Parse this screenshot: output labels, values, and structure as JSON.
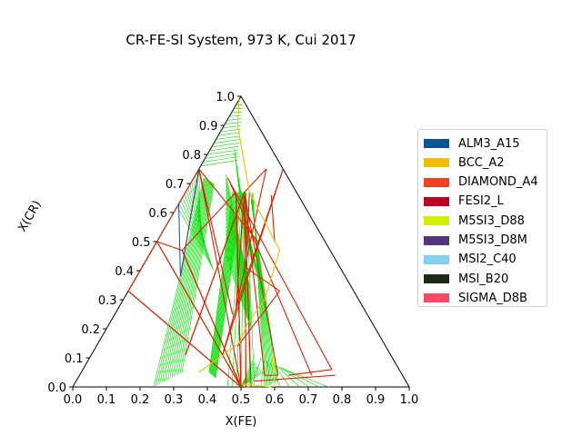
{
  "chart_data": {
    "type": "ternary",
    "title": "CR-FE-SI System, 973 K, Cui 2017",
    "xlabel": "X(FE)",
    "ylabel": "X(CR)",
    "xlim": [
      0,
      1
    ],
    "ylim": [
      0,
      1
    ],
    "x_ticks": [
      "0.0",
      "0.1",
      "0.2",
      "0.3",
      "0.4",
      "0.5",
      "0.6",
      "0.7",
      "0.8",
      "0.9",
      "1.0"
    ],
    "y_ticks": [
      "0.0",
      "0.1",
      "0.2",
      "0.3",
      "0.4",
      "0.5",
      "0.6",
      "0.7",
      "0.8",
      "0.9",
      "1.0"
    ],
    "legend": [
      {
        "name": "ALM3_A15",
        "color": "#0a5591"
      },
      {
        "name": "BCC_A2",
        "color": "#f0c000"
      },
      {
        "name": "DIAMOND_A4",
        "color": "#f04020"
      },
      {
        "name": "FESI2_L",
        "color": "#c00020"
      },
      {
        "name": "M5SI3_D88",
        "color": "#d4f000"
      },
      {
        "name": "M5SI3_D8M",
        "color": "#55357a"
      },
      {
        "name": "MSI2_C40",
        "color": "#80d0f0"
      },
      {
        "name": "MSI_B20",
        "color": "#20281a"
      },
      {
        "name": "SIGMA_D8B",
        "color": "#ff4868"
      }
    ],
    "legend_position": "right",
    "tieline_color": "#00e000",
    "boundary_color": "#e02000",
    "three_phase_triangles": [
      [
        [
          0.0,
          0.75
        ],
        [
          0.0,
          0.33
        ],
        [
          0.5,
          0.0
        ]
      ],
      [
        [
          0.0,
          0.5
        ],
        [
          0.0,
          0.33
        ],
        [
          0.5,
          0.0
        ]
      ],
      [
        [
          0.0,
          0.5
        ],
        [
          0.09,
          0.47
        ],
        [
          0.5,
          0.0
        ]
      ],
      [
        [
          0.09,
          0.47
        ],
        [
          0.15,
          0.67
        ],
        [
          0.5,
          0.0
        ]
      ],
      [
        [
          0.15,
          0.67
        ],
        [
          0.5,
          0.0
        ],
        [
          0.5,
          0.0
        ]
      ],
      [
        [
          0.175,
          0.67
        ],
        [
          0.515,
          0.0
        ],
        [
          0.53,
          0.0
        ]
      ],
      [
        [
          0.175,
          0.67
        ],
        [
          0.28,
          0.11
        ],
        [
          0.26,
          0.22
        ]
      ],
      [
        [
          0.175,
          0.67
        ],
        [
          0.55,
          0.04
        ],
        [
          0.59,
          0.04
        ]
      ],
      [
        [
          0.35,
          0.27
        ],
        [
          0.2,
          0.75
        ],
        [
          0.175,
          0.67
        ]
      ],
      [
        [
          0.25,
          0.75
        ],
        [
          0.35,
          0.27
        ],
        [
          0.39,
          0.11
        ]
      ]
    ],
    "bcc_boundary": [
      [
        0.0,
        0.99
      ],
      [
        0.04,
        0.9
      ],
      [
        0.19,
        0.67
      ],
      [
        0.38,
        0.47
      ],
      [
        0.42,
        0.3
      ],
      [
        0.41,
        0.22
      ],
      [
        0.42,
        0.15
      ],
      [
        0.35,
        0.05
      ]
    ]
  }
}
